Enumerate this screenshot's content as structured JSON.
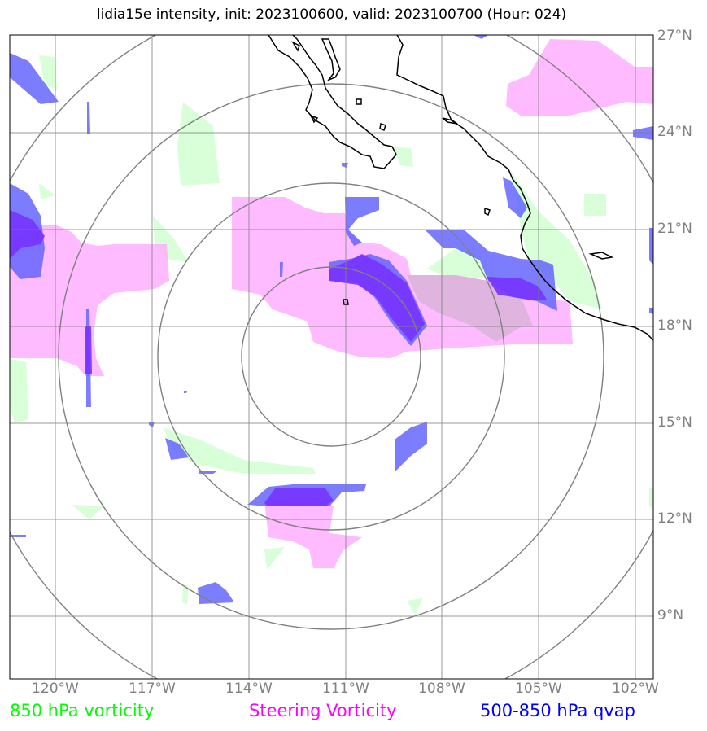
{
  "title": "lidia15e intensity, init: 2023100600, valid: 2023100700 (Hour: 024)",
  "lat_labels": [
    "27°N",
    "24°N",
    "21°N",
    "18°N",
    "15°N",
    "12°N",
    "9°N"
  ],
  "lon_labels": [
    "120°W",
    "117°W",
    "114°W",
    "111°W",
    "108°W",
    "105°W",
    "102°W"
  ],
  "legend": {
    "green": "850 hPa vorticity",
    "magenta": "Steering Vorticity",
    "blue": "500-850 hPa qvap"
  },
  "colors": {
    "green_text": "#00ff00",
    "magenta_text": "#ff00ff",
    "blue_text": "#0000ff",
    "green_fill": "#ccffcc",
    "magenta_fill": "#ffaaff",
    "blue_fill": "#6666ff",
    "overlap_fill": "#7f3fff",
    "grid": "#808080",
    "coast": "#000000"
  }
}
